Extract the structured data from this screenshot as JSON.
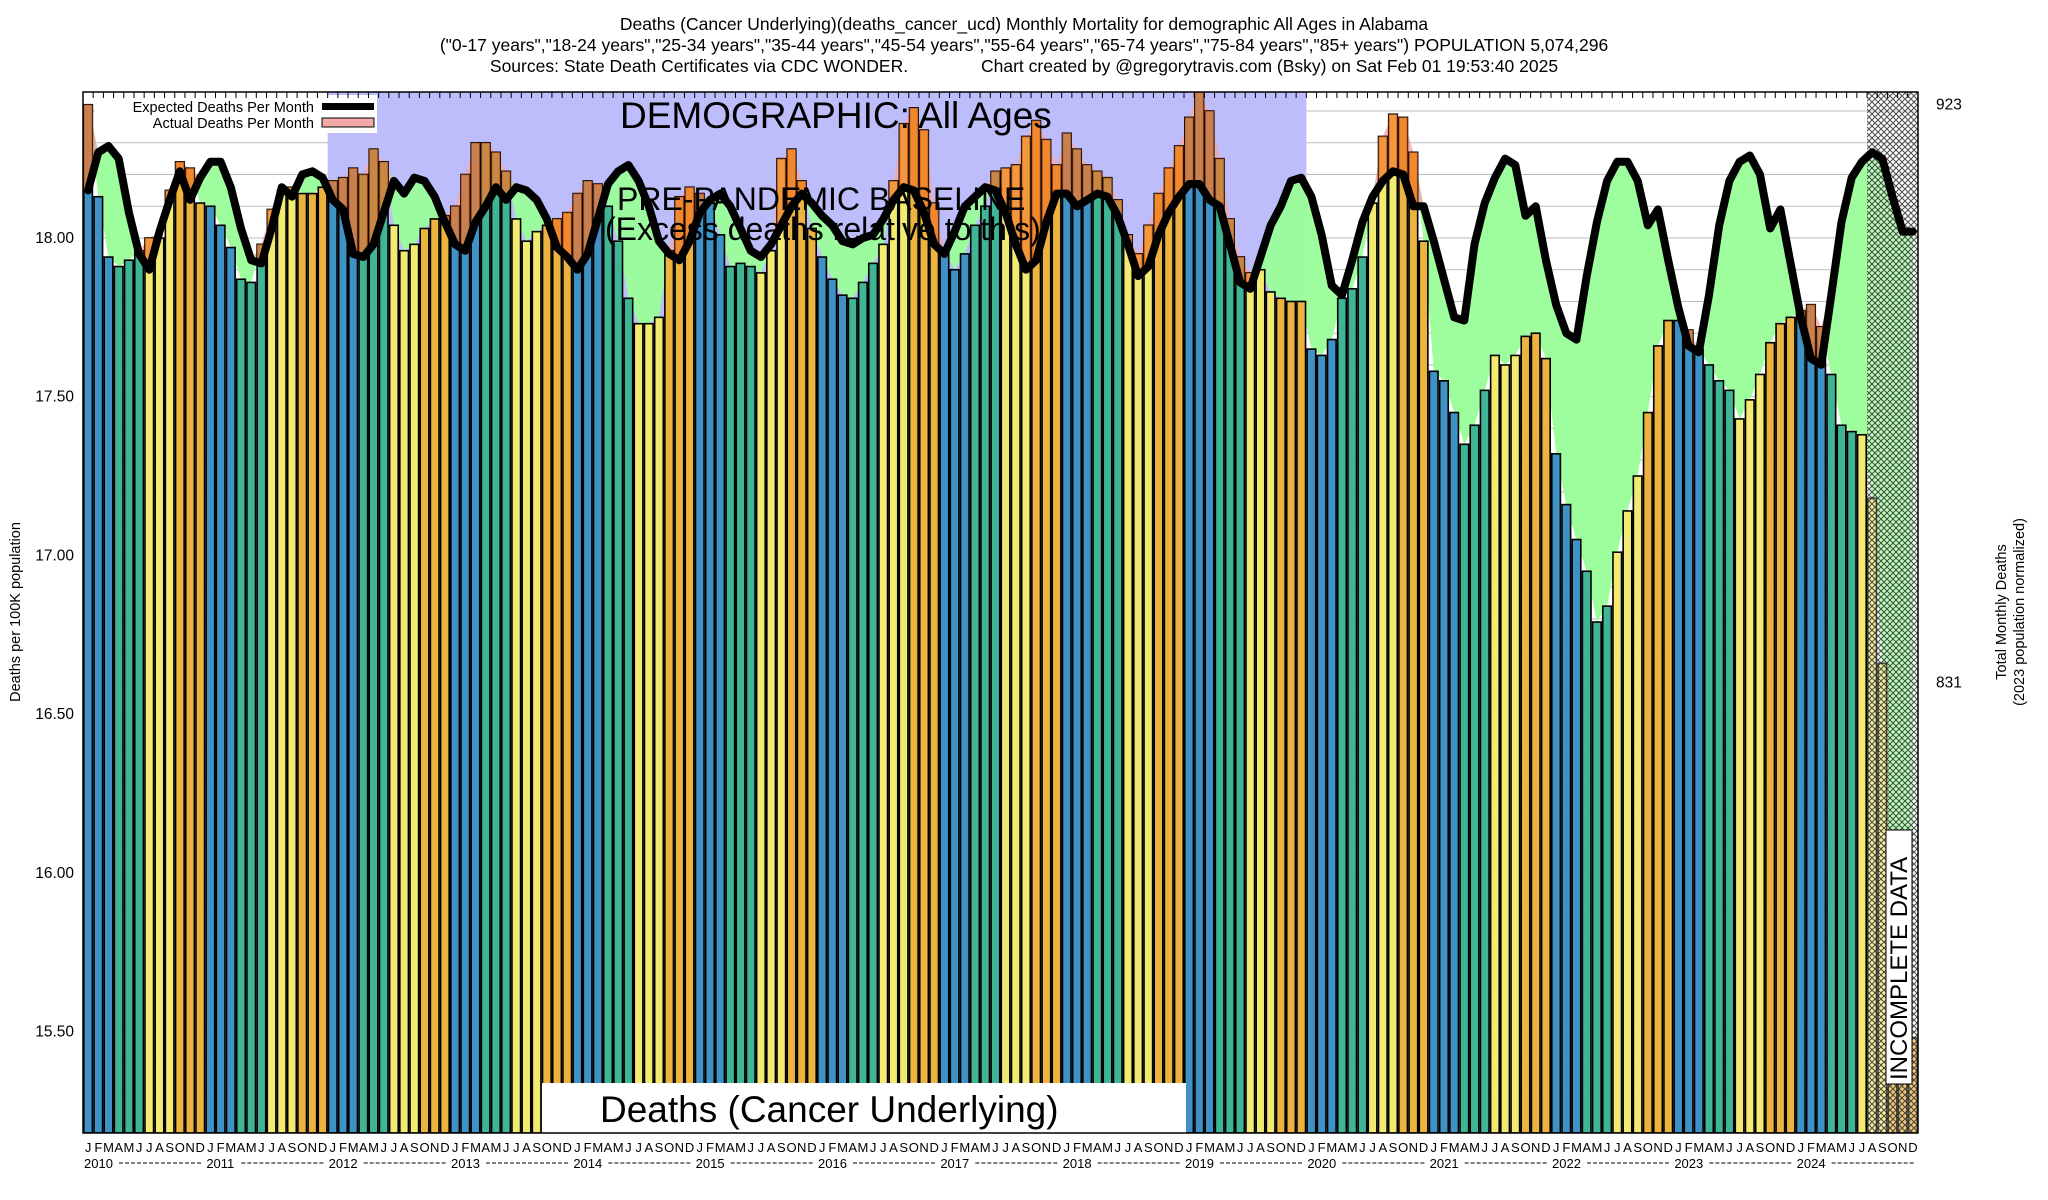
{
  "header": {
    "title_line1": "Deaths (Cancer Underlying)(deaths_cancer_ucd) Monthly Mortality for demographic All Ages in Alabama",
    "title_line2": "(\"0-17 years\",\"18-24 years\",\"25-34 years\",\"35-44 years\",\"45-54 years\",\"55-64 years\",\"65-74 years\",\"75-84 years\",\"85+ years\") POPULATION 5,074,296",
    "title_line3": "Sources: State Death Certificates via CDC WONDER.               Chart created by @gregorytravis.com (Bsky) on Sat Feb 01 19:53:40 2025"
  },
  "chart_data": {
    "type": "bar",
    "title": "Deaths (Cancer Underlying)(deaths_cancer_ucd) Monthly Mortality for demographic All Ages in Alabama",
    "ylabel": "Deaths per 100K population",
    "ylabel_right": "Total Monthly Deaths",
    "ylabel_right_sub": "(2023 population normalized)",
    "ylim": [
      15.18,
      18.46
    ],
    "yticks": [
      "18.00",
      "17.50",
      "17.00",
      "16.50",
      "16.00",
      "15.50"
    ],
    "ytick_values": [
      18.0,
      17.5,
      17.0,
      16.5,
      16.0,
      15.5
    ],
    "right_ticks": [
      "923",
      "831"
    ],
    "right_tick_values": [
      18.42,
      16.6
    ],
    "grid": true,
    "legend_position": "top-left",
    "legend": [
      {
        "label": "Expected Deaths Per Month",
        "color": "#000000"
      },
      {
        "label": "Actual Deaths Per Month",
        "color": "#f4a8a8"
      }
    ],
    "annotations": {
      "demographic": "DEMOGRAPHIC: All Ages",
      "baseline_line1": "PRE-PANDEMIC BASELINE",
      "baseline_line2": "(Excess deaths relative to this)",
      "bottom_label": "Deaths (Cancer Underlying)",
      "incomplete": "INCOMPLETE DATA"
    },
    "baseline_range": [
      "2012-01",
      "2019-12"
    ],
    "incomplete_range": [
      "2024-08",
      "2024-12"
    ],
    "month_letters": [
      "J",
      "F",
      "M",
      "A",
      "M",
      "J",
      "J",
      "A",
      "S",
      "O",
      "N",
      "D"
    ],
    "years": [
      "2010",
      "2011",
      "2012",
      "2013",
      "2014",
      "2015",
      "2016",
      "2017",
      "2018",
      "2019",
      "2020",
      "2021",
      "2022",
      "2023",
      "2024"
    ],
    "season_colors": [
      "#3f92c6",
      "#40b596",
      "#f3ea72",
      "#ecb43e"
    ],
    "excess_color": "#f47a2a",
    "deficit_color": "#99fe99",
    "baseline_color": "#bdbdfc",
    "series": [
      {
        "name": "Actual Deaths Per Month",
        "values": [
          18.42,
          18.13,
          17.94,
          17.91,
          17.93,
          17.96,
          18.0,
          18.0,
          18.15,
          18.24,
          18.22,
          18.11,
          18.1,
          18.04,
          17.97,
          17.87,
          17.86,
          17.98,
          18.09,
          18.15,
          18.16,
          18.14,
          18.14,
          18.16,
          18.18,
          18.19,
          18.22,
          18.2,
          18.28,
          18.24,
          18.04,
          17.96,
          17.98,
          18.03,
          18.06,
          18.07,
          18.1,
          18.2,
          18.3,
          18.3,
          18.27,
          18.21,
          18.06,
          17.99,
          18.02,
          18.04,
          18.06,
          18.08,
          18.14,
          18.18,
          18.17,
          18.1,
          17.99,
          17.81,
          17.73,
          17.73,
          17.75,
          17.96,
          18.13,
          18.16,
          18.14,
          18.11,
          18.01,
          17.91,
          17.92,
          17.91,
          17.89,
          17.96,
          18.25,
          18.28,
          18.18,
          18.03,
          17.94,
          17.87,
          17.82,
          17.81,
          17.86,
          17.92,
          17.98,
          18.18,
          18.36,
          18.41,
          18.34,
          18.11,
          17.96,
          17.9,
          17.95,
          18.04,
          18.1,
          18.21,
          18.22,
          18.23,
          18.32,
          18.37,
          18.31,
          18.23,
          18.33,
          18.28,
          18.23,
          18.21,
          18.19,
          18.12,
          18.01,
          17.95,
          18.04,
          18.14,
          18.22,
          18.29,
          18.38,
          18.46,
          18.4,
          18.25,
          18.06,
          17.94,
          17.89,
          17.9,
          17.83,
          17.81,
          17.8,
          17.8,
          17.65,
          17.63,
          17.68,
          17.81,
          17.84,
          17.94,
          18.11,
          18.32,
          18.39,
          18.38,
          18.27,
          17.99,
          17.58,
          17.55,
          17.45,
          17.35,
          17.41,
          17.52,
          17.63,
          17.6,
          17.63,
          17.69,
          17.7,
          17.62,
          17.32,
          17.16,
          17.05,
          16.95,
          16.79,
          16.84,
          17.01,
          17.14,
          17.25,
          17.45,
          17.66,
          17.74,
          17.74,
          17.71,
          17.65,
          17.6,
          17.55,
          17.52,
          17.43,
          17.49,
          17.57,
          17.67,
          17.73,
          17.75,
          17.77,
          17.79,
          17.72,
          17.57,
          17.41,
          17.39,
          17.38,
          17.18,
          16.66,
          15.5,
          15.5,
          15.48
        ]
      },
      {
        "name": "Expected Deaths Per Month",
        "values": [
          18.15,
          18.27,
          18.29,
          18.25,
          18.08,
          17.95,
          17.9,
          18.02,
          18.12,
          18.21,
          18.12,
          18.19,
          18.24,
          18.24,
          18.16,
          18.03,
          17.93,
          17.92,
          18.03,
          18.16,
          18.13,
          18.2,
          18.21,
          18.19,
          18.12,
          18.09,
          17.95,
          17.94,
          17.98,
          18.08,
          18.18,
          18.14,
          18.19,
          18.18,
          18.13,
          18.05,
          17.98,
          17.96,
          18.05,
          18.1,
          18.16,
          18.12,
          18.16,
          18.15,
          18.12,
          18.06,
          17.97,
          17.94,
          17.9,
          17.95,
          18.06,
          18.17,
          18.21,
          18.23,
          18.18,
          18.1,
          17.99,
          17.95,
          17.93,
          17.99,
          18.08,
          18.12,
          18.14,
          18.1,
          18.03,
          17.96,
          17.94,
          17.98,
          18.04,
          18.1,
          18.14,
          18.11,
          18.07,
          18.04,
          17.99,
          17.98,
          18.0,
          18.01,
          18.06,
          18.12,
          18.16,
          18.15,
          18.08,
          17.98,
          17.95,
          18.02,
          18.1,
          18.13,
          18.16,
          18.15,
          18.08,
          17.98,
          17.9,
          17.93,
          18.05,
          18.14,
          18.14,
          18.1,
          18.12,
          18.14,
          18.13,
          18.07,
          17.98,
          17.88,
          17.91,
          18.01,
          18.08,
          18.13,
          18.17,
          18.17,
          18.12,
          18.1,
          17.98,
          17.86,
          17.84,
          17.94,
          18.04,
          18.1,
          18.18,
          18.19,
          18.13,
          18.01,
          17.85,
          17.82,
          17.93,
          18.05,
          18.13,
          18.18,
          18.21,
          18.2,
          18.1,
          18.1,
          17.99,
          17.87,
          17.75,
          17.74,
          17.98,
          18.11,
          18.19,
          18.25,
          18.23,
          18.07,
          18.1,
          17.93,
          17.79,
          17.7,
          17.68,
          17.88,
          18.05,
          18.18,
          18.24,
          18.24,
          18.18,
          18.04,
          18.09,
          17.93,
          17.78,
          17.66,
          17.64,
          17.82,
          18.04,
          18.18,
          18.24,
          18.26,
          18.2,
          18.03,
          18.09,
          17.92,
          17.75,
          17.62,
          17.6,
          17.82,
          18.05,
          18.19,
          18.24,
          18.27,
          18.25,
          18.13,
          18.02,
          18.02
        ]
      }
    ]
  }
}
